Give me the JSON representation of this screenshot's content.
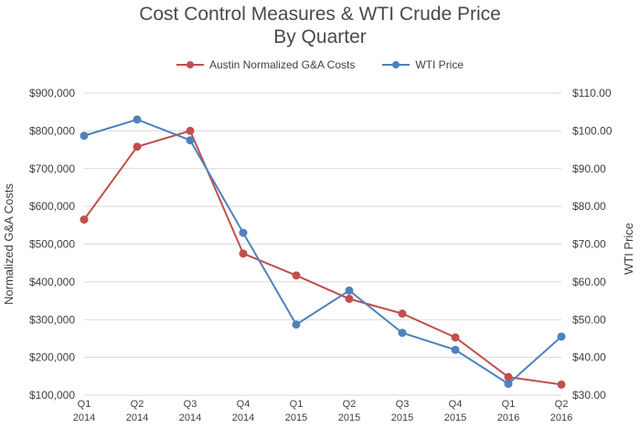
{
  "chart_data": {
    "type": "line",
    "title": "Cost Control Measures & WTI Crude Price",
    "subtitle": "By Quarter",
    "x_quarters": [
      "Q1",
      "Q2",
      "Q3",
      "Q4",
      "Q1",
      "Q2",
      "Q3",
      "Q4",
      "Q1",
      "Q2"
    ],
    "x_years": [
      "2014",
      "2014",
      "2014",
      "2014",
      "2015",
      "2015",
      "2015",
      "2015",
      "2016",
      "2016"
    ],
    "ylabel": "Normalized G&A Costs",
    "y2label": "WTI Price",
    "ylim": [
      100000,
      900000
    ],
    "y_ticks": [
      "$100,000",
      "$200,000",
      "$300,000",
      "$400,000",
      "$500,000",
      "$600,000",
      "$700,000",
      "$800,000",
      "$900,000"
    ],
    "y2lim": [
      30,
      110
    ],
    "y2_ticks": [
      "$30.00",
      "$40.00",
      "$50.00",
      "$60.00",
      "$70.00",
      "$80.00",
      "$90.00",
      "$100.00",
      "$110.00"
    ],
    "grid": true,
    "legend_position": "top",
    "series": [
      {
        "name": "Austin Normalized G&A Costs",
        "axis": "left",
        "color": "#c0504d",
        "values": [
          565000,
          758000,
          800000,
          475000,
          417000,
          355000,
          316000,
          253000,
          148000,
          128000
        ]
      },
      {
        "name": "WTI Price",
        "axis": "right",
        "color": "#4f81bd",
        "values": [
          98.7,
          103.0,
          97.5,
          73.0,
          48.7,
          57.7,
          46.5,
          42.0,
          33.0,
          45.5
        ]
      }
    ]
  }
}
